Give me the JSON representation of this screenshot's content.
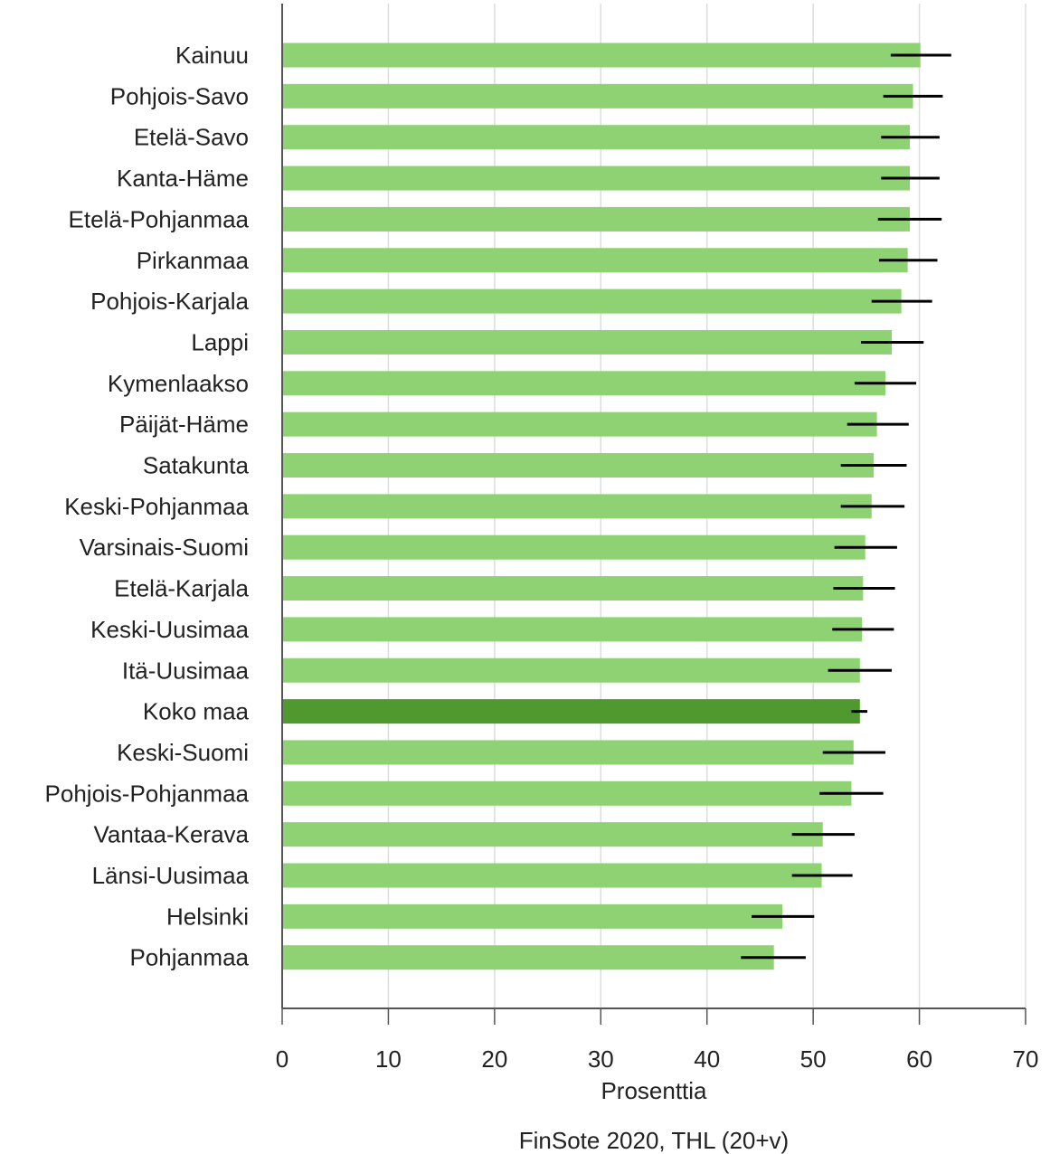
{
  "chart_data": {
    "type": "bar",
    "orientation": "horizontal",
    "xlabel": "Prosenttia",
    "source": "FinSote 2020, THL (20+v)",
    "xlim": [
      0,
      70
    ],
    "xticks": [
      0,
      10,
      20,
      30,
      40,
      50,
      60,
      70
    ],
    "grid": true,
    "colors": {
      "bar": "#8ed274",
      "highlight": "#4f992e",
      "error": "#000000",
      "grid": "#dddddd",
      "axis": "#555555"
    },
    "highlight": "Koko maa",
    "categories": [
      "Kainuu",
      "Pohjois-Savo",
      "Etelä-Savo",
      "Kanta-Häme",
      "Etelä-Pohjanmaa",
      "Pirkanmaa",
      "Pohjois-Karjala",
      "Lappi",
      "Kymenlaakso",
      "Päijät-Häme",
      "Satakunta",
      "Keski-Pohjanmaa",
      "Varsinais-Suomi",
      "Etelä-Karjala",
      "Keski-Uusimaa",
      "Itä-Uusimaa",
      "Koko maa",
      "Keski-Suomi",
      "Pohjois-Pohjanmaa",
      "Vantaa-Kerava",
      "Länsi-Uusimaa",
      "Helsinki",
      "Pohjanmaa"
    ],
    "values": [
      60.1,
      59.4,
      59.1,
      59.1,
      59.1,
      58.9,
      58.3,
      57.4,
      56.8,
      56.0,
      55.7,
      55.5,
      54.9,
      54.7,
      54.6,
      54.4,
      54.4,
      53.8,
      53.6,
      50.9,
      50.8,
      47.1,
      46.3
    ],
    "error_low": [
      57.3,
      56.6,
      56.4,
      56.4,
      56.1,
      56.2,
      55.5,
      54.5,
      53.9,
      53.2,
      52.6,
      52.6,
      52.0,
      51.9,
      51.8,
      51.4,
      53.6,
      50.9,
      50.6,
      48.0,
      48.0,
      44.2,
      43.2
    ],
    "error_high": [
      63.0,
      62.2,
      61.9,
      61.9,
      62.1,
      61.7,
      61.2,
      60.4,
      59.7,
      59.0,
      58.8,
      58.6,
      57.9,
      57.7,
      57.6,
      57.4,
      55.1,
      56.8,
      56.6,
      53.9,
      53.7,
      50.1,
      49.3
    ]
  }
}
